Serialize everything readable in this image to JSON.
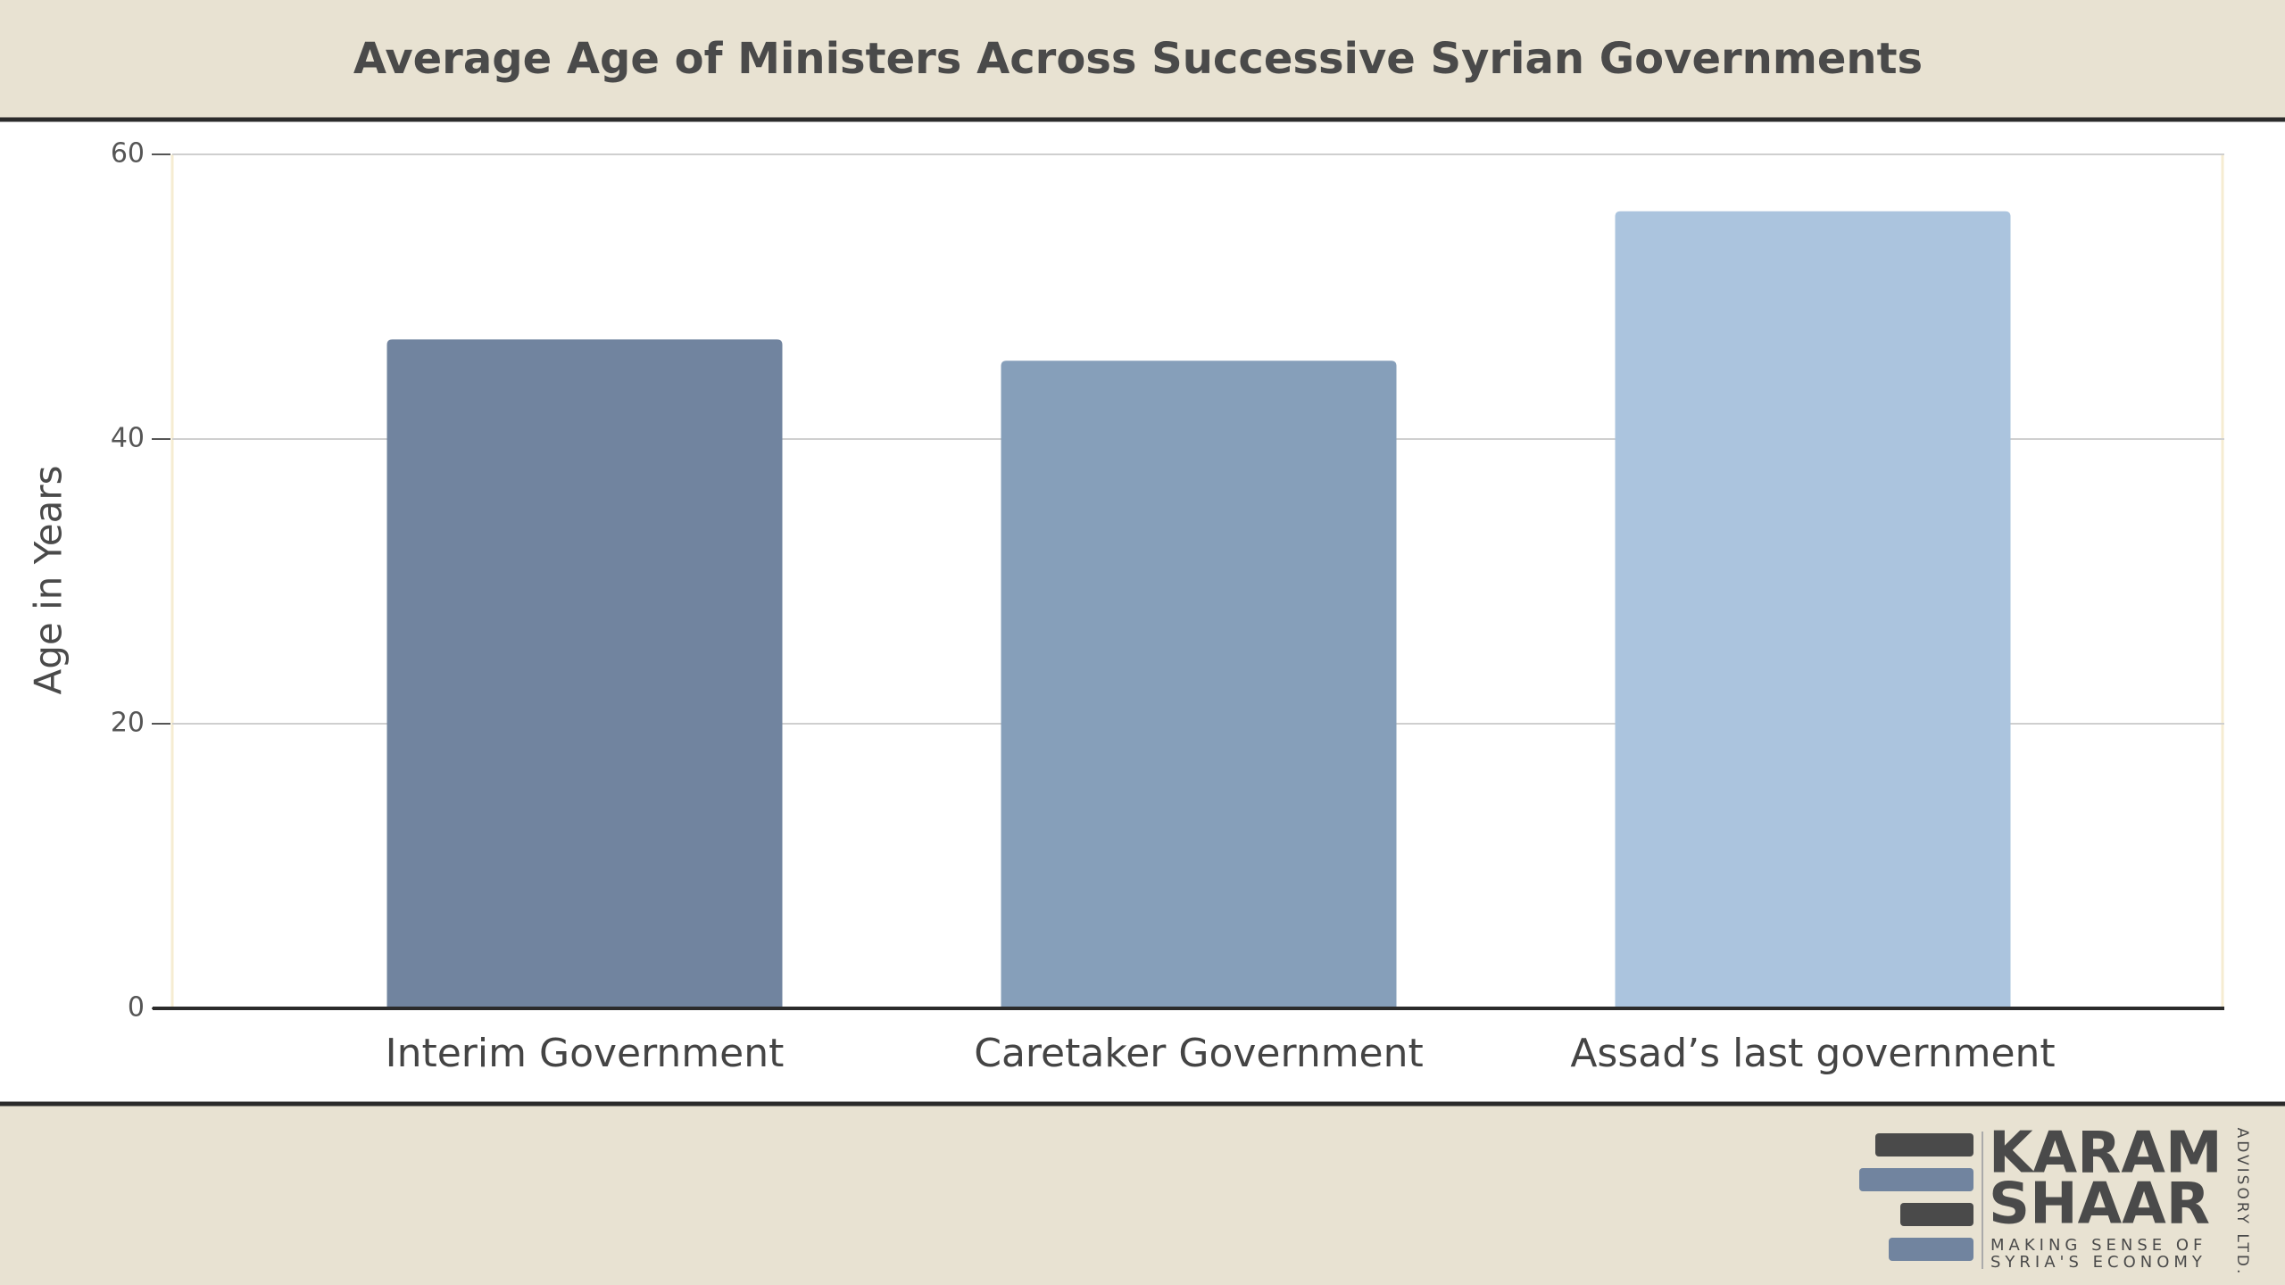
{
  "chart_data": {
    "type": "bar",
    "title": "Average Age of Ministers Across Successive Syrian Governments",
    "y_label": "Age in Years",
    "categories": [
      "Interim Government",
      "Caretaker Government",
      "Assad’s last government"
    ],
    "values": [
      47,
      45.5,
      56
    ],
    "colors": [
      "#71849f",
      "#869fba",
      "#abc4de"
    ],
    "ylim": [
      0,
      60
    ],
    "yticks": [
      0,
      20,
      40,
      60
    ],
    "grid": true
  },
  "logo": {
    "line1": "KARAM",
    "line2": "SHAAR",
    "tagline1": "MAKING SENSE OF",
    "tagline2": "SYRIA'S ECONOMY",
    "side": "ADVISORY LTD."
  }
}
